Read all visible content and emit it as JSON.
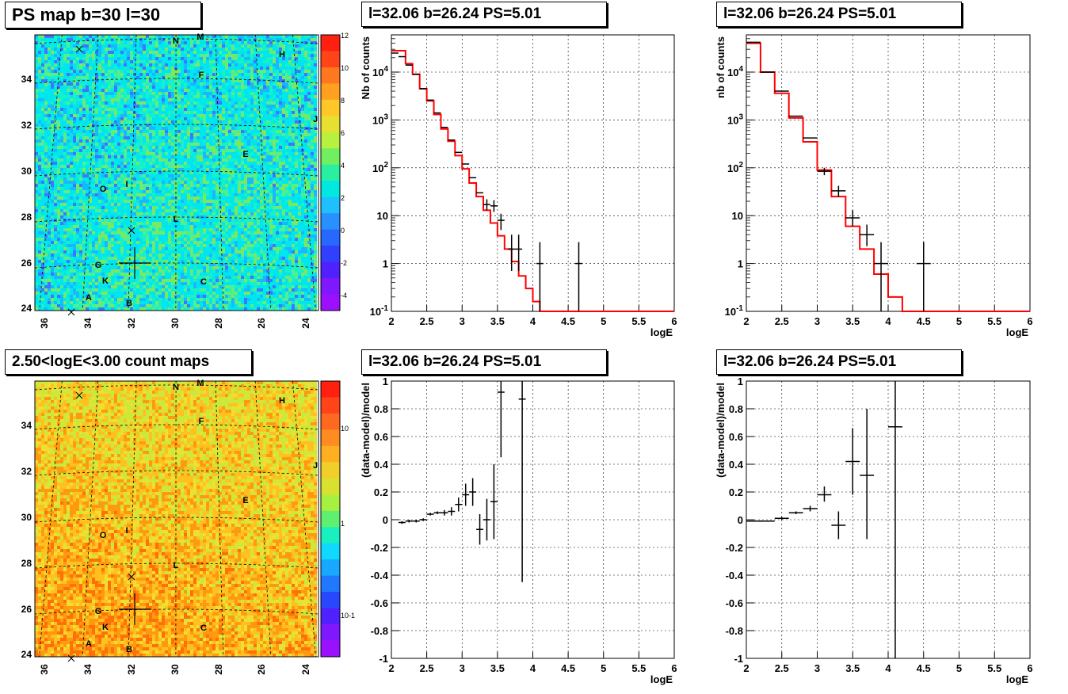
{
  "panels": {
    "map_top_title": "PS map b=30 l=30",
    "map_bottom_title": "2.50<logE<3.00 count maps",
    "spec_mid_title": "l=32.06 b=26.24 PS=5.01",
    "spec_right_title": "l=32.06 b=26.24 PS=5.01",
    "res_mid_title": "l=32.06 b=26.24 PS=5.01",
    "res_right_title": "l=32.06 b=26.24 PS=5.01"
  },
  "colors": {
    "model": "#ff0000",
    "data": "#000000",
    "grid": "#000000"
  },
  "map_axes": {
    "x_ticks": [
      "36",
      "34",
      "32",
      "30",
      "28",
      "26",
      "24"
    ],
    "y_ticks": [
      "24",
      "26",
      "28",
      "30",
      "32",
      "34"
    ],
    "top_colorbar_ticks": [
      "12",
      "10",
      "8",
      "6",
      "4",
      "2",
      "0",
      "-2",
      "-4"
    ],
    "bottom_colorbar_ticks": [
      "10",
      "1",
      "10-1"
    ],
    "source_labels": [
      "N",
      "M",
      "H",
      "F",
      "J",
      "E",
      "I",
      "O",
      "L",
      "G",
      "K",
      "C",
      "A",
      "B"
    ]
  },
  "chart_data": [
    {
      "panel": "map_top",
      "type": "heatmap",
      "title": "PS map b=30 l=30",
      "xlim": [
        36.5,
        23.5
      ],
      "ylim": [
        24,
        35.5
      ],
      "zlim": [
        -5,
        12
      ],
      "colorbar_ticks": [
        12,
        10,
        8,
        6,
        4,
        2,
        0,
        -2,
        -4
      ]
    },
    {
      "panel": "map_bottom",
      "type": "heatmap",
      "title": "2.50<logE<3.00 count maps",
      "xlim": [
        36.5,
        23.5
      ],
      "ylim": [
        24,
        35.5
      ],
      "zscale": "log"
    },
    {
      "panel": "spec_mid",
      "type": "line",
      "title": "l=32.06 b=26.24 PS=5.01",
      "xlabel": "logE",
      "ylabel": "Nb of counts",
      "xlim": [
        2,
        6
      ],
      "ylim": [
        0.1,
        60000
      ],
      "yscale": "log",
      "x_ticks": [
        "2",
        "2.5",
        "3",
        "3.5",
        "4",
        "4.5",
        "5",
        "5.5",
        "6"
      ],
      "y_ticks": [
        "10^-1",
        "1",
        "10",
        "10^2",
        "10^3",
        "10^4"
      ],
      "model_steps": [
        [
          2.0,
          2.2,
          28000
        ],
        [
          2.2,
          2.3,
          15000
        ],
        [
          2.3,
          2.4,
          9000
        ],
        [
          2.4,
          2.5,
          4500
        ],
        [
          2.5,
          2.6,
          2500
        ],
        [
          2.6,
          2.7,
          1300
        ],
        [
          2.7,
          2.8,
          650
        ],
        [
          2.8,
          2.9,
          360
        ],
        [
          2.9,
          3.0,
          180
        ],
        [
          3.0,
          3.1,
          95
        ],
        [
          3.1,
          3.2,
          48
        ],
        [
          3.2,
          3.3,
          25
        ],
        [
          3.3,
          3.4,
          13
        ],
        [
          3.4,
          3.5,
          7
        ],
        [
          3.5,
          3.6,
          3.8
        ],
        [
          3.6,
          3.7,
          2.0
        ],
        [
          3.7,
          3.8,
          1.1
        ],
        [
          3.8,
          3.9,
          0.55
        ],
        [
          3.9,
          4.0,
          0.3
        ],
        [
          4.0,
          4.1,
          0.16
        ],
        [
          4.1,
          4.2,
          0.1
        ],
        [
          4.2,
          6.0,
          0.1
        ]
      ],
      "data_points": [
        [
          2.05,
          25000,
          0.05,
          null,
          null
        ],
        [
          2.15,
          21000,
          0.05,
          null,
          null
        ],
        [
          2.25,
          14000,
          0.05,
          null,
          null
        ],
        [
          2.35,
          9000,
          0.05,
          null,
          null
        ],
        [
          2.45,
          4500,
          0.05,
          null,
          null
        ],
        [
          2.55,
          2600,
          0.05,
          null,
          null
        ],
        [
          2.65,
          1400,
          0.05,
          null,
          null
        ],
        [
          2.75,
          700,
          0.05,
          null,
          null
        ],
        [
          2.85,
          380,
          0.05,
          null,
          null
        ],
        [
          2.95,
          210,
          0.05,
          null,
          null
        ],
        [
          3.05,
          120,
          0.05,
          null,
          null
        ],
        [
          3.15,
          62,
          0.05,
          null,
          null
        ],
        [
          3.25,
          30,
          0.05,
          null,
          null
        ],
        [
          3.35,
          17,
          0.05,
          13,
          22
        ],
        [
          3.45,
          16,
          0.05,
          12,
          21
        ],
        [
          3.55,
          8,
          0.05,
          5,
          11
        ],
        [
          3.7,
          2,
          0.05,
          0.7,
          4
        ],
        [
          3.8,
          2,
          0.05,
          0.7,
          4
        ],
        [
          4.1,
          1,
          0.05,
          0.1,
          2.8
        ],
        [
          4.65,
          1,
          0.05,
          0.1,
          2.8
        ]
      ]
    },
    {
      "panel": "spec_right",
      "type": "line",
      "title": "l=32.06 b=26.24 PS=5.01",
      "xlabel": "logE",
      "ylabel": "nb of counts",
      "xlim": [
        2,
        6
      ],
      "ylim": [
        0.1,
        60000
      ],
      "yscale": "log",
      "x_ticks": [
        "2",
        "2.5",
        "3",
        "3.5",
        "4",
        "4.5",
        "5",
        "5.5",
        "6"
      ],
      "y_ticks": [
        "10^-1",
        "1",
        "10",
        "10^2",
        "10^3",
        "10^4"
      ],
      "model_steps": [
        [
          2.0,
          2.2,
          40000
        ],
        [
          2.2,
          2.4,
          10000
        ],
        [
          2.4,
          2.6,
          3600
        ],
        [
          2.6,
          2.8,
          1100
        ],
        [
          2.8,
          3.0,
          350
        ],
        [
          3.0,
          3.2,
          90
        ],
        [
          3.2,
          3.4,
          25
        ],
        [
          3.4,
          3.6,
          6
        ],
        [
          3.6,
          3.8,
          2.0
        ],
        [
          3.8,
          4.0,
          0.6
        ],
        [
          4.0,
          4.2,
          0.2
        ],
        [
          4.2,
          4.4,
          0.1
        ],
        [
          4.4,
          6.0,
          0.1
        ]
      ],
      "data_points": [
        [
          2.1,
          42000,
          0.1,
          null,
          null
        ],
        [
          2.3,
          10000,
          0.1,
          null,
          null
        ],
        [
          2.5,
          4000,
          0.1,
          null,
          null
        ],
        [
          2.7,
          1200,
          0.1,
          null,
          null
        ],
        [
          2.9,
          420,
          0.1,
          null,
          null
        ],
        [
          3.1,
          85,
          0.1,
          70,
          100
        ],
        [
          3.3,
          33,
          0.1,
          25,
          42
        ],
        [
          3.5,
          9,
          0.1,
          6,
          13
        ],
        [
          3.7,
          4,
          0.1,
          2.3,
          6.5
        ],
        [
          3.9,
          1,
          0.1,
          0.1,
          2.8
        ],
        [
          4.5,
          1,
          0.1,
          0.1,
          2.8
        ]
      ]
    },
    {
      "panel": "res_mid",
      "type": "scatter",
      "title": "l=32.06 b=26.24 PS=5.01",
      "xlabel": "logE",
      "ylabel": "(data-model)/model",
      "xlim": [
        2,
        6
      ],
      "ylim": [
        -1,
        1
      ],
      "x_ticks": [
        "2",
        "2.5",
        "3",
        "3.5",
        "4",
        "4.5",
        "5",
        "5.5",
        "6"
      ],
      "y_ticks": [
        "-1",
        "-0.8",
        "-0.6",
        "-0.4",
        "-0.2",
        "0",
        "0.2",
        "0.4",
        "0.6",
        "0.8",
        "1"
      ],
      "data_points": [
        [
          2.15,
          -0.02,
          0.05,
          -0.03,
          -0.01
        ],
        [
          2.25,
          -0.01,
          0.05,
          -0.02,
          0.0
        ],
        [
          2.35,
          -0.01,
          0.05,
          -0.02,
          0.0
        ],
        [
          2.45,
          0.0,
          0.05,
          -0.01,
          0.01
        ],
        [
          2.55,
          0.04,
          0.05,
          0.03,
          0.05
        ],
        [
          2.65,
          0.05,
          0.05,
          0.04,
          0.06
        ],
        [
          2.75,
          0.05,
          0.05,
          0.03,
          0.07
        ],
        [
          2.85,
          0.06,
          0.05,
          0.03,
          0.09
        ],
        [
          2.95,
          0.11,
          0.05,
          0.06,
          0.16
        ],
        [
          3.05,
          0.18,
          0.05,
          0.1,
          0.26
        ],
        [
          3.15,
          0.2,
          0.05,
          0.1,
          0.3
        ],
        [
          3.25,
          -0.07,
          0.05,
          -0.18,
          0.04
        ],
        [
          3.35,
          0.0,
          0.05,
          -0.15,
          0.15
        ],
        [
          3.45,
          0.13,
          0.05,
          -0.14,
          0.4
        ],
        [
          3.55,
          0.92,
          0.05,
          0.45,
          1.0
        ],
        [
          3.85,
          0.87,
          0.05,
          -0.45,
          1.0
        ]
      ]
    },
    {
      "panel": "res_right",
      "type": "scatter",
      "title": "l=32.06 b=26.24 PS=5.01",
      "xlabel": "logE",
      "ylabel": "(data-model)/model",
      "xlim": [
        2,
        6
      ],
      "ylim": [
        -1,
        1
      ],
      "x_ticks": [
        "2",
        "2.5",
        "3",
        "3.5",
        "4",
        "4.5",
        "5",
        "5.5",
        "6"
      ],
      "y_ticks": [
        "-1",
        "-0.8",
        "-0.6",
        "-0.4",
        "-0.2",
        "0",
        "0.2",
        "0.4",
        "0.6",
        "0.8",
        "1"
      ],
      "data_points": [
        [
          2.2,
          -0.01,
          0.2,
          -0.015,
          -0.005
        ],
        [
          2.5,
          0.01,
          0.1,
          0.0,
          0.02
        ],
        [
          2.7,
          0.05,
          0.1,
          0.04,
          0.06
        ],
        [
          2.9,
          0.08,
          0.1,
          0.06,
          0.1
        ],
        [
          3.1,
          0.18,
          0.1,
          0.13,
          0.24
        ],
        [
          3.3,
          -0.04,
          0.1,
          -0.14,
          0.06
        ],
        [
          3.5,
          0.42,
          0.1,
          0.18,
          0.66
        ],
        [
          3.7,
          0.32,
          0.1,
          -0.14,
          0.8
        ],
        [
          4.1,
          0.67,
          0.1,
          -1.0,
          1.0
        ]
      ]
    }
  ]
}
